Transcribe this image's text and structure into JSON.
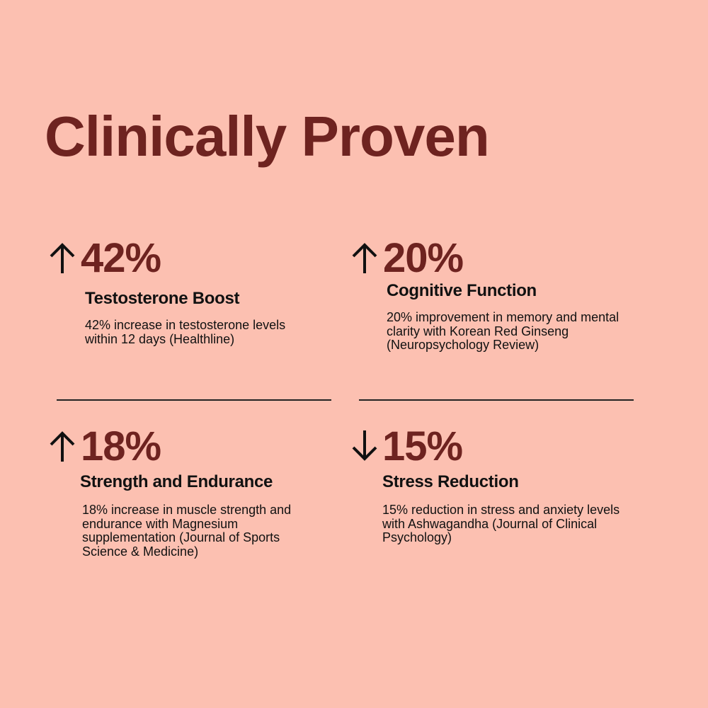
{
  "title": "Clinically Proven",
  "colors": {
    "background": "#fcc0b1",
    "accent": "#6e2320",
    "text": "#111111"
  },
  "stats": [
    {
      "direction": "up",
      "icon": "arrow-up-icon",
      "value": "42%",
      "heading": "Testosterone Boost",
      "description": "42% increase in testosterone levels within 12 days (Healthline)"
    },
    {
      "direction": "up",
      "icon": "arrow-up-icon",
      "value": "20%",
      "heading": "Cognitive Function",
      "description": "20% improvement in memory and mental clarity with Korean Red Ginseng (Neuropsychology Review)"
    },
    {
      "direction": "up",
      "icon": "arrow-up-icon",
      "value": "18%",
      "heading": "Strength and Endurance",
      "description": "18% increase in muscle strength and endurance with Magnesium supplementation (Journal of Sports Science & Medicine)"
    },
    {
      "direction": "down",
      "icon": "arrow-down-icon",
      "value": "15%",
      "heading": "Stress Reduction",
      "description": "15% reduction in stress and anxiety levels with Ashwagandha (Journal of Clinical Psychology)"
    }
  ]
}
